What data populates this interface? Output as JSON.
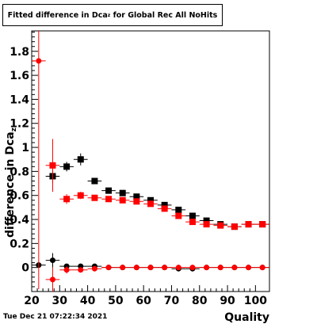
{
  "chart_data": {
    "type": "scatter",
    "title": "Fitted difference in Dca",
    "title_subscript": "z",
    "title_suffix": " for Global Rec All NoHits",
    "xlabel": "Quality",
    "ylabel": "difference in Dca",
    "ylabel_subscript": "z",
    "xlim": [
      20,
      105
    ],
    "ylim": [
      -0.2,
      1.97
    ],
    "x_ticks": [
      20,
      30,
      40,
      50,
      60,
      70,
      80,
      90,
      100
    ],
    "x_tick_labels": [
      "20",
      "30",
      "40",
      "50",
      "60",
      "70",
      "80",
      "90",
      "100"
    ],
    "y_ticks": [
      0,
      0.2,
      0.4,
      0.6,
      0.8,
      1,
      1.2,
      1.4,
      1.6,
      1.8
    ],
    "y_tick_labels": [
      "0",
      "0.2",
      "0.4",
      "0.6",
      "0.8",
      "1",
      "1.2",
      "1.4",
      "1.6",
      "1.8"
    ],
    "grid": false,
    "series": [
      {
        "marker": "square",
        "color": "#000000",
        "points": [
          {
            "x": 27.5,
            "y": 0.76,
            "err": 0.06
          },
          {
            "x": 32.5,
            "y": 0.84,
            "err": 0.04
          },
          {
            "x": 37.5,
            "y": 0.9,
            "err": 0.05
          },
          {
            "x": 42.5,
            "y": 0.72,
            "err": 0.02
          },
          {
            "x": 47.5,
            "y": 0.64,
            "err": 0.015
          },
          {
            "x": 52.5,
            "y": 0.62,
            "err": 0.015
          },
          {
            "x": 57.5,
            "y": 0.59,
            "err": 0.01
          },
          {
            "x": 62.5,
            "y": 0.56,
            "err": 0.01
          },
          {
            "x": 67.5,
            "y": 0.52,
            "err": 0.01
          },
          {
            "x": 72.5,
            "y": 0.48,
            "err": 0.01
          },
          {
            "x": 77.5,
            "y": 0.43,
            "err": 0.01
          },
          {
            "x": 82.5,
            "y": 0.39,
            "err": 0.01
          },
          {
            "x": 87.5,
            "y": 0.36,
            "err": 0.01
          },
          {
            "x": 92.5,
            "y": 0.34,
            "err": 0.01
          },
          {
            "x": 97.5,
            "y": 0.36,
            "err": 0.01
          },
          {
            "x": 102.5,
            "y": 0.36,
            "err": 0.01
          }
        ]
      },
      {
        "marker": "square",
        "color": "#ff0000",
        "points": [
          {
            "x": 27.5,
            "y": 0.85,
            "err": 0.22
          },
          {
            "x": 32.5,
            "y": 0.57,
            "err": 0.04
          },
          {
            "x": 37.5,
            "y": 0.6,
            "err": 0.03
          },
          {
            "x": 42.5,
            "y": 0.58,
            "err": 0.02
          },
          {
            "x": 47.5,
            "y": 0.57,
            "err": 0.015
          },
          {
            "x": 52.5,
            "y": 0.56,
            "err": 0.015
          },
          {
            "x": 57.5,
            "y": 0.55,
            "err": 0.01
          },
          {
            "x": 62.5,
            "y": 0.53,
            "err": 0.01
          },
          {
            "x": 67.5,
            "y": 0.49,
            "err": 0.01
          },
          {
            "x": 72.5,
            "y": 0.43,
            "err": 0.01
          },
          {
            "x": 77.5,
            "y": 0.38,
            "err": 0.01
          },
          {
            "x": 82.5,
            "y": 0.36,
            "err": 0.01
          },
          {
            "x": 87.5,
            "y": 0.35,
            "err": 0.01
          },
          {
            "x": 92.5,
            "y": 0.34,
            "err": 0.01
          },
          {
            "x": 97.5,
            "y": 0.36,
            "err": 0.01
          },
          {
            "x": 102.5,
            "y": 0.36,
            "err": 0.01
          }
        ]
      },
      {
        "marker": "circle",
        "color": "#000000",
        "points": [
          {
            "x": 22.5,
            "y": 0.02,
            "err": 0.02
          },
          {
            "x": 27.5,
            "y": 0.06,
            "err": 0.06
          },
          {
            "x": 32.5,
            "y": 0.01,
            "err": 0.02
          },
          {
            "x": 37.5,
            "y": 0.01,
            "err": 0.01
          },
          {
            "x": 42.5,
            "y": 0.01,
            "err": 0.01
          },
          {
            "x": 47.5,
            "y": 0.0,
            "err": 0.005
          },
          {
            "x": 52.5,
            "y": 0.0,
            "err": 0.005
          },
          {
            "x": 57.5,
            "y": 0.0,
            "err": 0.005
          },
          {
            "x": 62.5,
            "y": 0.0,
            "err": 0.005
          },
          {
            "x": 67.5,
            "y": 0.0,
            "err": 0.005
          },
          {
            "x": 72.5,
            "y": -0.01,
            "err": 0.005
          },
          {
            "x": 77.5,
            "y": -0.01,
            "err": 0.005
          },
          {
            "x": 82.5,
            "y": 0.0,
            "err": 0.005
          },
          {
            "x": 87.5,
            "y": 0.0,
            "err": 0.005
          },
          {
            "x": 92.5,
            "y": 0.0,
            "err": 0.005
          },
          {
            "x": 97.5,
            "y": 0.0,
            "err": 0.005
          },
          {
            "x": 102.5,
            "y": 0.0,
            "err": 0.005
          }
        ]
      },
      {
        "marker": "circle",
        "color": "#ff0000",
        "points": [
          {
            "x": 22.5,
            "y": 1.72,
            "err": 1.9
          },
          {
            "x": 27.5,
            "y": -0.1,
            "err": 0.1
          },
          {
            "x": 32.5,
            "y": -0.02,
            "err": 0.03
          },
          {
            "x": 37.5,
            "y": -0.02,
            "err": 0.02
          },
          {
            "x": 42.5,
            "y": -0.01,
            "err": 0.01
          },
          {
            "x": 47.5,
            "y": 0.0,
            "err": 0.005
          },
          {
            "x": 52.5,
            "y": 0.0,
            "err": 0.005
          },
          {
            "x": 57.5,
            "y": 0.0,
            "err": 0.005
          },
          {
            "x": 62.5,
            "y": 0.0,
            "err": 0.005
          },
          {
            "x": 67.5,
            "y": 0.0,
            "err": 0.005
          },
          {
            "x": 72.5,
            "y": 0.0,
            "err": 0.005
          },
          {
            "x": 77.5,
            "y": 0.0,
            "err": 0.005
          },
          {
            "x": 82.5,
            "y": 0.0,
            "err": 0.005
          },
          {
            "x": 87.5,
            "y": 0.0,
            "err": 0.005
          },
          {
            "x": 92.5,
            "y": 0.0,
            "err": 0.005
          },
          {
            "x": 97.5,
            "y": 0.0,
            "err": 0.005
          },
          {
            "x": 102.5,
            "y": 0.0,
            "err": 0.005
          }
        ]
      }
    ]
  },
  "footer": {
    "timestamp": "Tue Dec 21 07:22:34 2021"
  }
}
